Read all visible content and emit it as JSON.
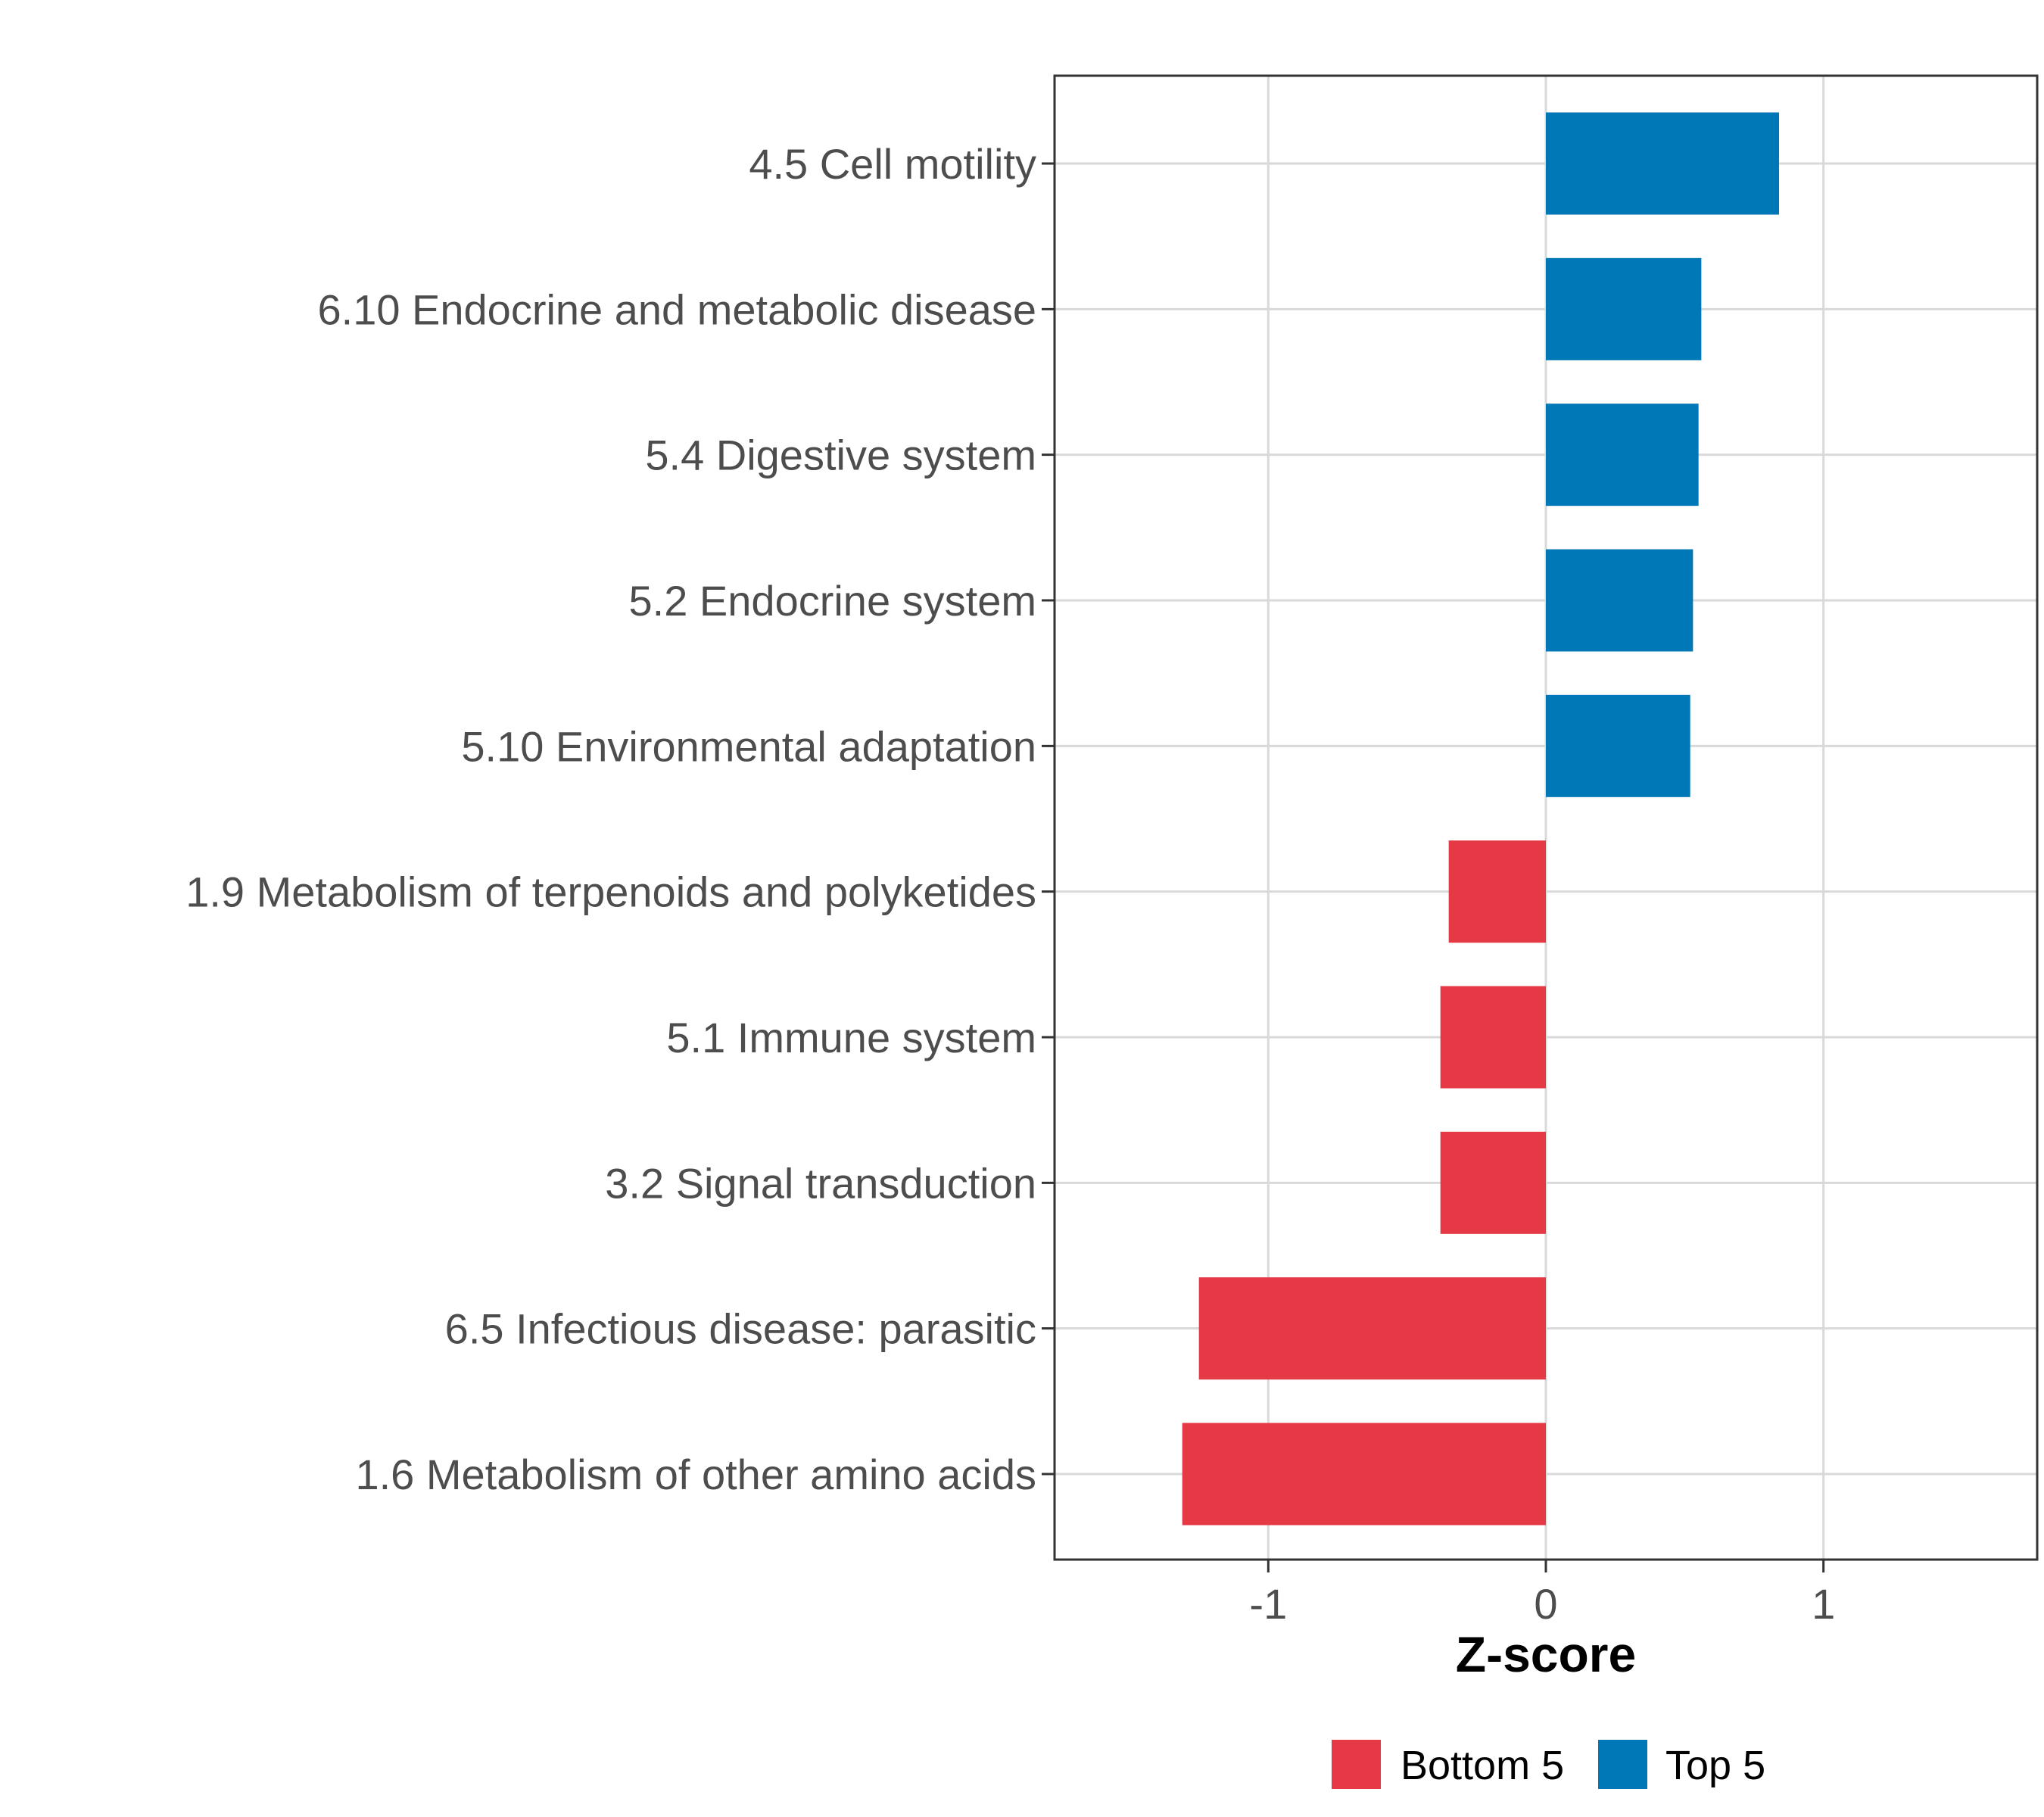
{
  "chart_data": {
    "type": "bar",
    "orientation": "horizontal",
    "categories": [
      "4.5 Cell motility",
      "6.10 Endocrine and metabolic disease",
      "5.4 Digestive system",
      "5.2 Endocrine system",
      "5.10 Environmental adaptation",
      "1.9 Metabolism of terpenoids and polyketides",
      "5.1 Immune system",
      "3.2 Signal transduction",
      "6.5 Infectious disease: parasitic",
      "1.6 Metabolism of other amino acids"
    ],
    "values": [
      0.84,
      0.56,
      0.55,
      0.53,
      0.52,
      -0.35,
      -0.38,
      -0.38,
      -1.25,
      -1.31
    ],
    "groups": [
      "Top 5",
      "Top 5",
      "Top 5",
      "Top 5",
      "Top 5",
      "Bottom 5",
      "Bottom 5",
      "Bottom 5",
      "Bottom 5",
      "Bottom 5"
    ],
    "xlabel": "Z-score",
    "ylabel": "",
    "xlim": [
      -1.77,
      1.77
    ],
    "xticks": [
      -1,
      0,
      1
    ],
    "xtick_labels": [
      "-1",
      "0",
      "1"
    ],
    "grid": true,
    "legend": {
      "position": "bottom",
      "entries": [
        {
          "label": "Bottom 5",
          "color": "#e63946"
        },
        {
          "label": "Top 5",
          "color": "#0077b6"
        }
      ]
    },
    "colors": {
      "Top 5": "#0077b6",
      "Bottom 5": "#e63946"
    }
  }
}
